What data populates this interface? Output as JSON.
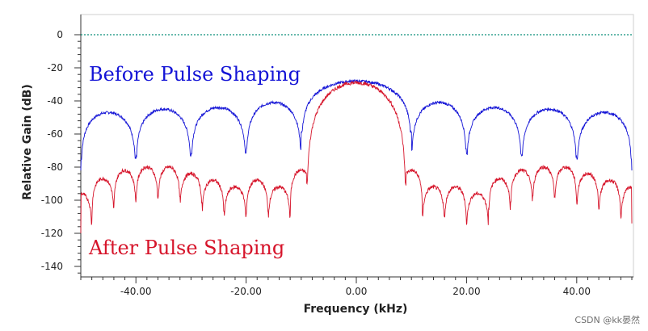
{
  "chart_data": {
    "type": "line",
    "xlabel": "Frequency (kHz)",
    "ylabel": "Relative Gain (dB)",
    "xlim": [
      -50,
      50
    ],
    "ylim": [
      -145,
      5
    ],
    "x_ticks": [
      -40,
      -20,
      0,
      20,
      40
    ],
    "x_tick_labels": [
      "-40.00",
      "-20.00",
      "0.00",
      "20.00",
      "40.00"
    ],
    "y_ticks": [
      0,
      -20,
      -40,
      -60,
      -80,
      -100,
      -120,
      -140
    ],
    "y_tick_labels": [
      "0",
      "-20",
      "-40",
      "-60",
      "-80",
      "-100",
      "-120",
      "-140"
    ],
    "reference_line": {
      "y": 0,
      "color": "#0e8f7a",
      "style": "dotted"
    },
    "grid": false,
    "annotations": [
      {
        "text": "Before  Pulse  Shaping",
        "color": "#1414d6"
      },
      {
        "text": "After  Pulse  Shaping",
        "color": "#d6142a"
      }
    ],
    "series": [
      {
        "color": "#1414d6",
        "main_lobe": {
          "center": 0,
          "half_width": 10,
          "peak": -28
        },
        "side_lobe_peaks": [
          -49,
          -47,
          -45,
          -44,
          -41,
          -41,
          -44,
          -45,
          -47,
          -49
        ],
        "nulls_x": [
          -40,
          -30,
          -20,
          -10,
          10,
          20,
          30,
          40
        ],
        "null_depth": -78,
        "edge_values": [
          -82,
          -82
        ]
      },
      {
        "color": "#d6142a",
        "main_lobe": {
          "center": 0,
          "half_width": 9,
          "peak": -29
        },
        "side_lobe_peaks": [
          -92,
          -92,
          -96,
          -87,
          -82,
          -80,
          -80,
          -84,
          -88,
          -92,
          -88,
          -92
        ],
        "side_lobe_nulls_x": [
          -48,
          -44,
          -40,
          -36,
          -32,
          -28,
          -24,
          -20,
          -16,
          -12,
          12,
          16,
          20,
          24,
          28,
          32,
          36,
          40,
          44,
          48
        ],
        "null_depth": -118,
        "edge_values": [
          -120,
          -114
        ]
      }
    ]
  },
  "watermark": "CSDN @kk晏然"
}
